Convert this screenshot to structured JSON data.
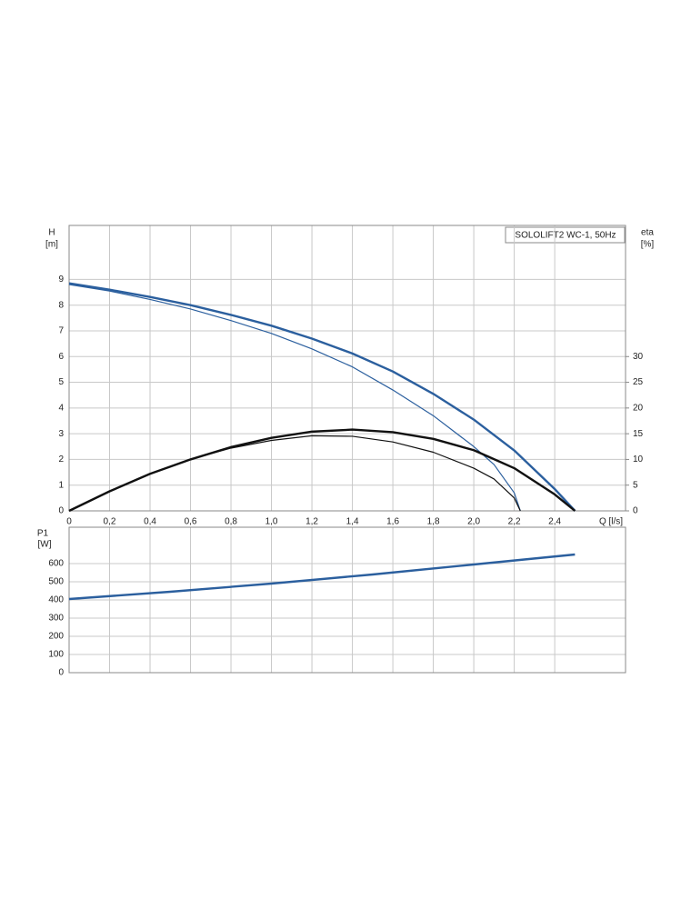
{
  "chart_data": [
    {
      "type": "line",
      "title": "SOLOLIFT2 WC-1, 50Hz",
      "ylabel": [
        "H",
        "[m]"
      ],
      "y2label": [
        "eta",
        "[%]"
      ],
      "xlabel": "Q [l/s]",
      "xlim": [
        0,
        2.75
      ],
      "ylim": [
        0,
        11.1
      ],
      "y2lim": [
        0,
        55.5
      ],
      "grid": true,
      "xticks": [
        0,
        {
          "value": 0.2,
          "label": "0,2"
        },
        {
          "value": 0.4,
          "label": "0,4"
        },
        {
          "value": 0.6,
          "label": "0,6"
        },
        {
          "value": 0.8,
          "label": "0,8"
        },
        {
          "value": 1.0,
          "label": "1,0"
        },
        {
          "value": 1.2,
          "label": "1,2"
        },
        {
          "value": 1.4,
          "label": "1,4"
        },
        {
          "value": 1.6,
          "label": "1,6"
        },
        {
          "value": 1.8,
          "label": "1,8"
        },
        {
          "value": 2.0,
          "label": "2,0"
        },
        {
          "value": 2.2,
          "label": "2,2"
        },
        {
          "value": 2.4,
          "label": "2,4"
        }
      ],
      "yticks": [
        0,
        1,
        2,
        3,
        4,
        5,
        6,
        7,
        8,
        9
      ],
      "y2ticks": [
        0,
        5,
        10,
        15,
        20,
        25,
        30
      ],
      "series": [
        {
          "color": "#2b5f9e",
          "x": [
            0,
            0.2,
            0.4,
            0.6,
            0.8,
            1.0,
            1.2,
            1.4,
            1.6,
            1.8,
            2.0,
            2.2,
            2.4,
            2.5
          ],
          "values": [
            8.85,
            8.6,
            8.32,
            8.0,
            7.62,
            7.2,
            6.7,
            6.12,
            5.42,
            4.55,
            3.55,
            2.35,
            0.85,
            0
          ]
        },
        {
          "color": "#2b5f9e",
          "x": [
            0,
            0.2,
            0.4,
            0.6,
            0.8,
            1.0,
            1.2,
            1.4,
            1.6,
            1.8,
            2.0,
            2.1,
            2.2,
            2.23
          ],
          "values": [
            8.8,
            8.55,
            8.22,
            7.85,
            7.4,
            6.9,
            6.3,
            5.6,
            4.7,
            3.7,
            2.5,
            1.8,
            0.7,
            0
          ]
        },
        {
          "color": "#111111",
          "axis": "y2",
          "x": [
            0,
            0.2,
            0.4,
            0.6,
            0.8,
            1.0,
            1.2,
            1.4,
            1.6,
            1.8,
            2.0,
            2.2,
            2.4,
            2.5
          ],
          "values": [
            0,
            3.8,
            7.2,
            10.0,
            12.4,
            14.2,
            15.4,
            15.8,
            15.3,
            14.0,
            11.8,
            8.3,
            3.2,
            0
          ]
        },
        {
          "color": "#111111",
          "axis": "y2",
          "x": [
            0,
            0.2,
            0.4,
            0.6,
            0.8,
            1.0,
            1.2,
            1.4,
            1.6,
            1.8,
            2.0,
            2.1,
            2.2,
            2.23
          ],
          "values": [
            0,
            3.8,
            7.2,
            10.0,
            12.2,
            13.7,
            14.6,
            14.5,
            13.4,
            11.4,
            8.3,
            6.2,
            2.5,
            0
          ]
        }
      ]
    },
    {
      "type": "line",
      "ylabel": [
        "P1",
        "[W]"
      ],
      "xlim": [
        0,
        2.75
      ],
      "ylim": [
        0,
        800
      ],
      "grid": true,
      "yticks": [
        0,
        100,
        200,
        300,
        400,
        500,
        600
      ],
      "series": [
        {
          "color": "#2b5f9e",
          "x": [
            0,
            0.5,
            1.0,
            1.5,
            2.0,
            2.5
          ],
          "values": [
            405,
            445,
            490,
            540,
            595,
            650
          ]
        }
      ]
    }
  ]
}
